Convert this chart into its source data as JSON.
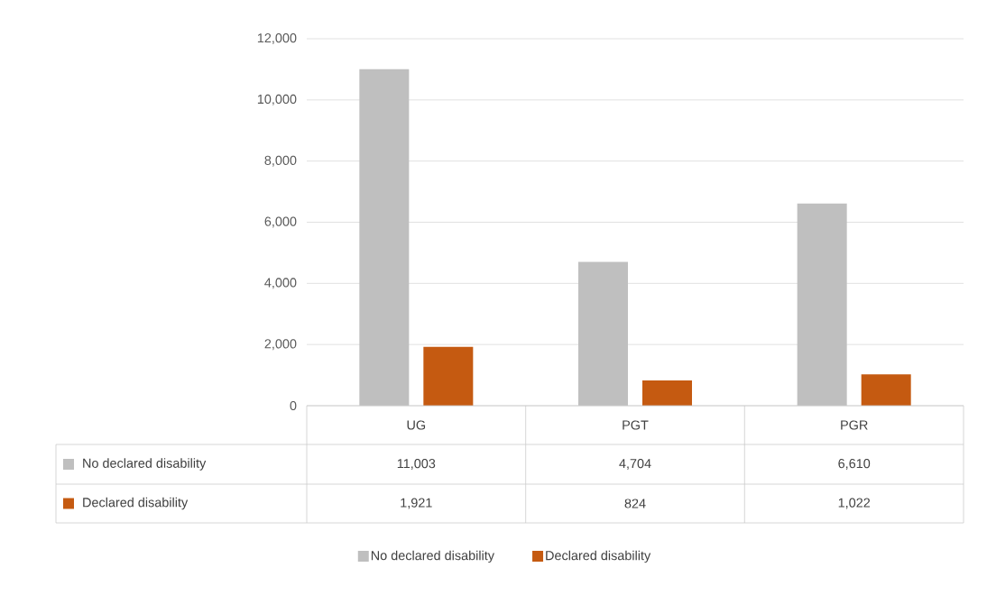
{
  "chart_data": {
    "type": "bar",
    "categories": [
      "UG",
      "PGT",
      "PGR"
    ],
    "series": [
      {
        "name": "No declared disability",
        "color": "#bfbfbf",
        "values": [
          11003,
          4704,
          6610
        ],
        "value_labels": [
          "11,003",
          "4,704",
          "6,610"
        ]
      },
      {
        "name": "Declared disability",
        "color": "#c55a11",
        "values": [
          1921,
          824,
          1022
        ],
        "value_labels": [
          "1,921",
          "824",
          "1,022"
        ]
      }
    ],
    "ylim": [
      0,
      12000
    ],
    "yticks": [
      {
        "value": 0,
        "label": "0"
      },
      {
        "value": 2000,
        "label": "2,000"
      },
      {
        "value": 4000,
        "label": "4,000"
      },
      {
        "value": 6000,
        "label": "6,000"
      },
      {
        "value": 8000,
        "label": "8,000"
      },
      {
        "value": 10000,
        "label": "10,000"
      },
      {
        "value": 12000,
        "label": "12,000"
      }
    ],
    "grid": "y",
    "legend": "bottom"
  }
}
